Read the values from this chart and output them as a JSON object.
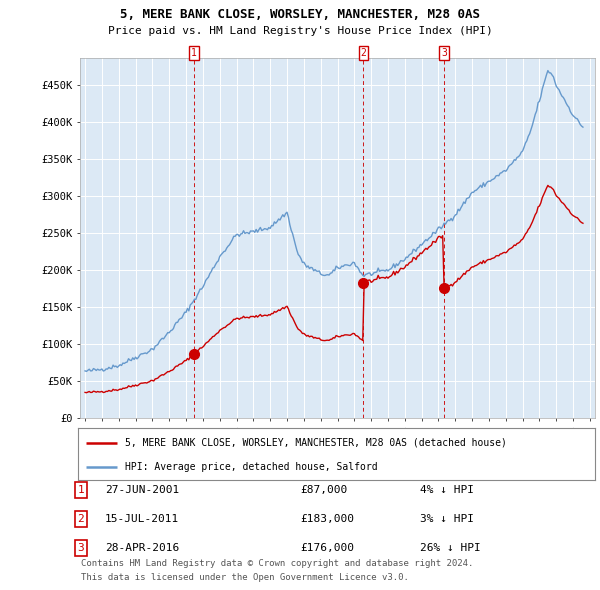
{
  "title": "5, MERE BANK CLOSE, WORSLEY, MANCHESTER, M28 0AS",
  "subtitle": "Price paid vs. HM Land Registry's House Price Index (HPI)",
  "background_color": "#ffffff",
  "plot_bg_color": "#dce9f5",
  "grid_color": "#ffffff",
  "red_color": "#cc0000",
  "blue_color": "#6699cc",
  "yticks": [
    0,
    50000,
    100000,
    150000,
    200000,
    250000,
    300000,
    350000,
    400000,
    450000
  ],
  "ytick_labels": [
    "£0",
    "£50K",
    "£100K",
    "£150K",
    "£200K",
    "£250K",
    "£300K",
    "£350K",
    "£400K",
    "£450K"
  ],
  "xmin": 1994.7,
  "xmax": 2025.3,
  "ymin": 0,
  "ymax": 487000,
  "transactions": [
    {
      "num": 1,
      "date_x": 2001.49,
      "price": 87000,
      "label": "1",
      "pct": "4%",
      "dir": "↓",
      "date_str": "27-JUN-2001"
    },
    {
      "num": 2,
      "date_x": 2011.54,
      "price": 183000,
      "label": "2",
      "pct": "3%",
      "dir": "↓",
      "date_str": "15-JUL-2011"
    },
    {
      "num": 3,
      "date_x": 2016.32,
      "price": 176000,
      "label": "3",
      "pct": "26%",
      "dir": "↓",
      "date_str": "28-APR-2016"
    }
  ],
  "legend_line1": "5, MERE BANK CLOSE, WORSLEY, MANCHESTER, M28 0AS (detached house)",
  "legend_line2": "HPI: Average price, detached house, Salford",
  "footer1": "Contains HM Land Registry data © Crown copyright and database right 2024.",
  "footer2": "This data is licensed under the Open Government Licence v3.0."
}
